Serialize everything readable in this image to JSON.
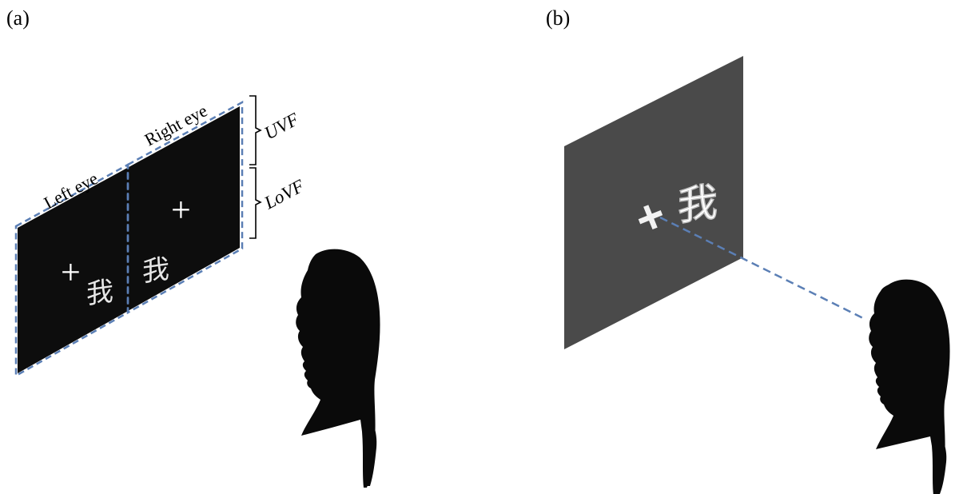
{
  "panels": {
    "a": {
      "label": "(a)",
      "left_eye": "Left eye",
      "right_eye": "Right eye",
      "uvf": "UVF",
      "lovf": "LoVF",
      "fixation": "+",
      "character": "我"
    },
    "b": {
      "label": "(b)",
      "fixation": "+",
      "character": "我"
    }
  },
  "colors": {
    "screen_a": "#0d0d0d",
    "screen_b": "#4a4a4a",
    "dashed_line": "#5b7fb5",
    "silhouette": "#0a0a0a",
    "character_white": "#e6e6e6",
    "character_ghost": "#d8d8d8"
  }
}
